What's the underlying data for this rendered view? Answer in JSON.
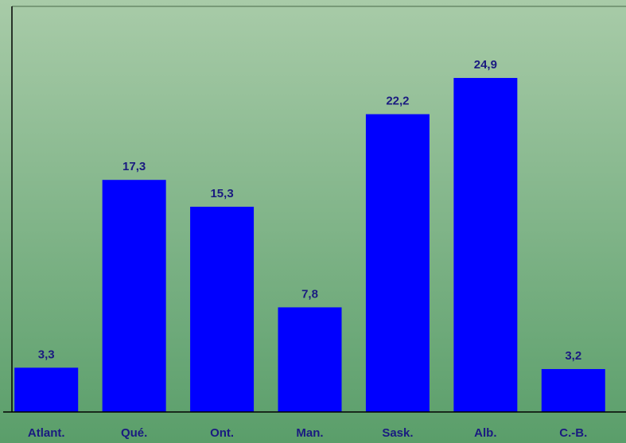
{
  "chart_data": {
    "type": "bar",
    "categories": [
      "Atlant.",
      "Qué.",
      "Ont.",
      "Man.",
      "Sask.",
      "Alb.",
      "C.-B."
    ],
    "values": [
      3.3,
      17.3,
      15.3,
      7.8,
      22.2,
      24.9,
      3.2
    ],
    "value_labels": [
      "3,3",
      "17,3",
      "15,3",
      "7,8",
      "22,2",
      "24,9",
      "3,2"
    ],
    "color": "#0000ff",
    "ylim": [
      0,
      30
    ]
  }
}
